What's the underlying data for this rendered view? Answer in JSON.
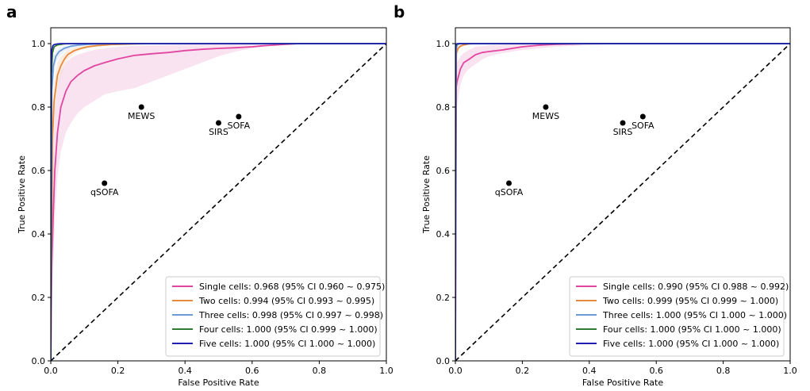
{
  "chart_data": [
    {
      "type": "line",
      "panel": "a",
      "xlabel": "False Positive Rate",
      "ylabel": "True Positive Rate",
      "xlim": [
        0,
        1
      ],
      "ylim": [
        0,
        1.05
      ],
      "xticks": [
        "0.0",
        "0.2",
        "0.4",
        "0.6",
        "0.8",
        "1.0"
      ],
      "yticks": [
        "0.0",
        "0.2",
        "0.4",
        "0.6",
        "0.8",
        "1.0"
      ],
      "legend_position": "lower-right",
      "grid": false,
      "series": [
        {
          "name": "Single cells: 0.968 (95% CI 0.960 ~ 0.975)",
          "color": "#e0469f",
          "x": [
            0,
            0.003,
            0.007,
            0.012,
            0.02,
            0.03,
            0.045,
            0.06,
            0.08,
            0.1,
            0.13,
            0.16,
            0.2,
            0.25,
            0.3,
            0.35,
            0.4,
            0.45,
            0.5,
            0.55,
            0.6,
            0.63,
            0.66,
            0.7,
            0.74,
            1.0
          ],
          "y": [
            0,
            0.3,
            0.45,
            0.6,
            0.72,
            0.8,
            0.85,
            0.88,
            0.9,
            0.915,
            0.93,
            0.94,
            0.952,
            0.963,
            0.968,
            0.972,
            0.978,
            0.982,
            0.985,
            0.987,
            0.99,
            0.993,
            0.995,
            0.998,
            1.0,
            1.0
          ],
          "ci_low": [
            0,
            0.16,
            0.3,
            0.45,
            0.58,
            0.66,
            0.72,
            0.75,
            0.78,
            0.8,
            0.82,
            0.84,
            0.85,
            0.86,
            0.88,
            0.9,
            0.92,
            0.94,
            0.96,
            0.975,
            0.985,
            0.99,
            0.995,
            0.998,
            1.0,
            1.0
          ],
          "ci_high": [
            0,
            0.5,
            0.65,
            0.78,
            0.86,
            0.91,
            0.94,
            0.955,
            0.965,
            0.972,
            0.98,
            0.985,
            0.99,
            0.993,
            0.995,
            0.996,
            0.997,
            0.998,
            0.999,
            1.0,
            1.0,
            1.0,
            1.0,
            1.0,
            1.0,
            1.0
          ]
        },
        {
          "name": "Two cells: 0.994 (95% CI 0.993 ~ 0.995)",
          "color": "#e8883a",
          "x": [
            0,
            0.005,
            0.01,
            0.02,
            0.03,
            0.04,
            0.05,
            0.07,
            0.09,
            0.11,
            0.14,
            0.18,
            0.25,
            0.3,
            1.0
          ],
          "y": [
            0,
            0.7,
            0.82,
            0.9,
            0.93,
            0.95,
            0.965,
            0.978,
            0.985,
            0.99,
            0.994,
            0.997,
            0.999,
            1.0,
            1.0
          ],
          "ci_low": [
            0,
            0.6,
            0.75,
            0.86,
            0.9,
            0.93,
            0.95,
            0.97,
            0.98,
            0.986,
            0.99,
            0.995,
            0.998,
            1.0,
            1.0
          ],
          "ci_high": [
            0,
            0.8,
            0.88,
            0.94,
            0.96,
            0.97,
            0.98,
            0.987,
            0.992,
            0.995,
            0.997,
            0.999,
            1.0,
            1.0,
            1.0
          ]
        },
        {
          "name": "Three cells: 0.998 (95% CI 0.997 ~ 0.998)",
          "color": "#6b9bd8",
          "x": [
            0,
            0.003,
            0.008,
            0.015,
            0.025,
            0.04,
            0.06,
            0.08,
            0.11,
            0.15,
            0.2,
            1.0
          ],
          "y": [
            0,
            0.85,
            0.93,
            0.96,
            0.975,
            0.985,
            0.992,
            0.995,
            0.998,
            0.999,
            1.0,
            1.0
          ],
          "ci_low": [
            0,
            0.8,
            0.9,
            0.94,
            0.96,
            0.975,
            0.985,
            0.99,
            0.995,
            0.998,
            1.0,
            1.0
          ],
          "ci_high": [
            0,
            0.9,
            0.96,
            0.975,
            0.985,
            0.992,
            0.996,
            0.998,
            0.999,
            1.0,
            1.0,
            1.0
          ]
        },
        {
          "name": "Four cells: 1.000 (95% CI 0.999 ~ 1.000)",
          "color": "#2e7d32",
          "x": [
            0,
            0.002,
            0.005,
            0.01,
            0.02,
            0.04,
            0.06,
            1.0
          ],
          "y": [
            0,
            0.9,
            0.97,
            0.99,
            0.996,
            0.999,
            1.0,
            1.0
          ]
        },
        {
          "name": "Five cells: 1.000 (95% CI 1.000 ~ 1.000)",
          "color": "#1f1fb4",
          "x": [
            0,
            0.001,
            0.003,
            0.006,
            0.01,
            0.02,
            0.03,
            1.0
          ],
          "y": [
            0,
            0.93,
            0.98,
            0.993,
            0.997,
            0.999,
            1.0,
            1.0
          ]
        }
      ],
      "points": [
        {
          "label": "MEWS",
          "x": 0.27,
          "y": 0.8,
          "label_pos": "below"
        },
        {
          "label": "SIRS",
          "x": 0.5,
          "y": 0.75,
          "label_pos": "below"
        },
        {
          "label": "SOFA",
          "x": 0.56,
          "y": 0.77,
          "label_pos": "below"
        },
        {
          "label": "qSOFA",
          "x": 0.16,
          "y": 0.56,
          "label_pos": "below"
        }
      ]
    },
    {
      "type": "line",
      "panel": "b",
      "xlabel": "False Positive Rate",
      "ylabel": "True Positive Rate",
      "xlim": [
        0,
        1
      ],
      "ylim": [
        0,
        1.05
      ],
      "xticks": [
        "0.0",
        "0.2",
        "0.4",
        "0.6",
        "0.8",
        "1.0"
      ],
      "yticks": [
        "0.0",
        "0.2",
        "0.4",
        "0.6",
        "0.8",
        "1.0"
      ],
      "legend_position": "lower-right",
      "grid": false,
      "series": [
        {
          "name": "Single cells: 0.990 (95% CI 0.988 ~ 0.992)",
          "color": "#e0469f",
          "x": [
            0,
            0.002,
            0.005,
            0.01,
            0.015,
            0.025,
            0.04,
            0.06,
            0.08,
            0.1,
            0.14,
            0.2,
            0.25,
            0.3,
            0.4,
            0.5,
            1.0
          ],
          "y": [
            0,
            0.86,
            0.88,
            0.9,
            0.92,
            0.94,
            0.95,
            0.965,
            0.972,
            0.975,
            0.98,
            0.99,
            0.995,
            0.998,
            1.0,
            1.0,
            1.0
          ],
          "ci_low": [
            0,
            0.76,
            0.8,
            0.84,
            0.87,
            0.9,
            0.92,
            0.935,
            0.95,
            0.96,
            0.97,
            0.98,
            0.985,
            0.99,
            0.995,
            1.0,
            1.0
          ],
          "ci_high": [
            0,
            0.93,
            0.94,
            0.95,
            0.96,
            0.97,
            0.98,
            0.99,
            0.992,
            0.995,
            0.997,
            0.998,
            0.999,
            1.0,
            1.0,
            1.0,
            1.0
          ]
        },
        {
          "name": "Two cells: 0.999 (95% CI 0.999 ~ 1.000)",
          "color": "#e8883a",
          "x": [
            0,
            0.003,
            0.008,
            0.015,
            0.025,
            0.04,
            0.06,
            1.0
          ],
          "y": [
            0,
            0.97,
            0.985,
            0.992,
            0.996,
            0.999,
            1.0,
            1.0
          ],
          "ci_low": [
            0,
            0.95,
            0.975,
            0.988,
            0.993,
            0.998,
            1.0,
            1.0
          ],
          "ci_high": [
            0,
            0.99,
            0.995,
            0.997,
            0.999,
            1.0,
            1.0,
            1.0
          ]
        },
        {
          "name": "Three cells: 1.000 (95% CI 1.000 ~ 1.000)",
          "color": "#6b9bd8",
          "x": [
            0,
            0.002,
            0.005,
            0.01,
            0.02,
            1.0
          ],
          "y": [
            0,
            0.98,
            0.995,
            0.999,
            1.0,
            1.0
          ]
        },
        {
          "name": "Four cells: 1.000 (95% CI 1.000 ~ 1.000)",
          "color": "#2e7d32",
          "x": [
            0,
            0.001,
            0.004,
            0.01,
            1.0
          ],
          "y": [
            0,
            0.99,
            0.998,
            1.0,
            1.0
          ]
        },
        {
          "name": "Five cells: 1.000 (95% CI 1.000 ~ 1.000)",
          "color": "#1f1fb4",
          "x": [
            0,
            0.001,
            0.003,
            0.008,
            1.0
          ],
          "y": [
            0,
            0.995,
            0.999,
            1.0,
            1.0
          ]
        }
      ],
      "points": [
        {
          "label": "MEWS",
          "x": 0.27,
          "y": 0.8,
          "label_pos": "below"
        },
        {
          "label": "SIRS",
          "x": 0.5,
          "y": 0.75,
          "label_pos": "below"
        },
        {
          "label": "SOFA",
          "x": 0.56,
          "y": 0.77,
          "label_pos": "below"
        },
        {
          "label": "qSOFA",
          "x": 0.16,
          "y": 0.56,
          "label_pos": "below"
        }
      ]
    }
  ]
}
